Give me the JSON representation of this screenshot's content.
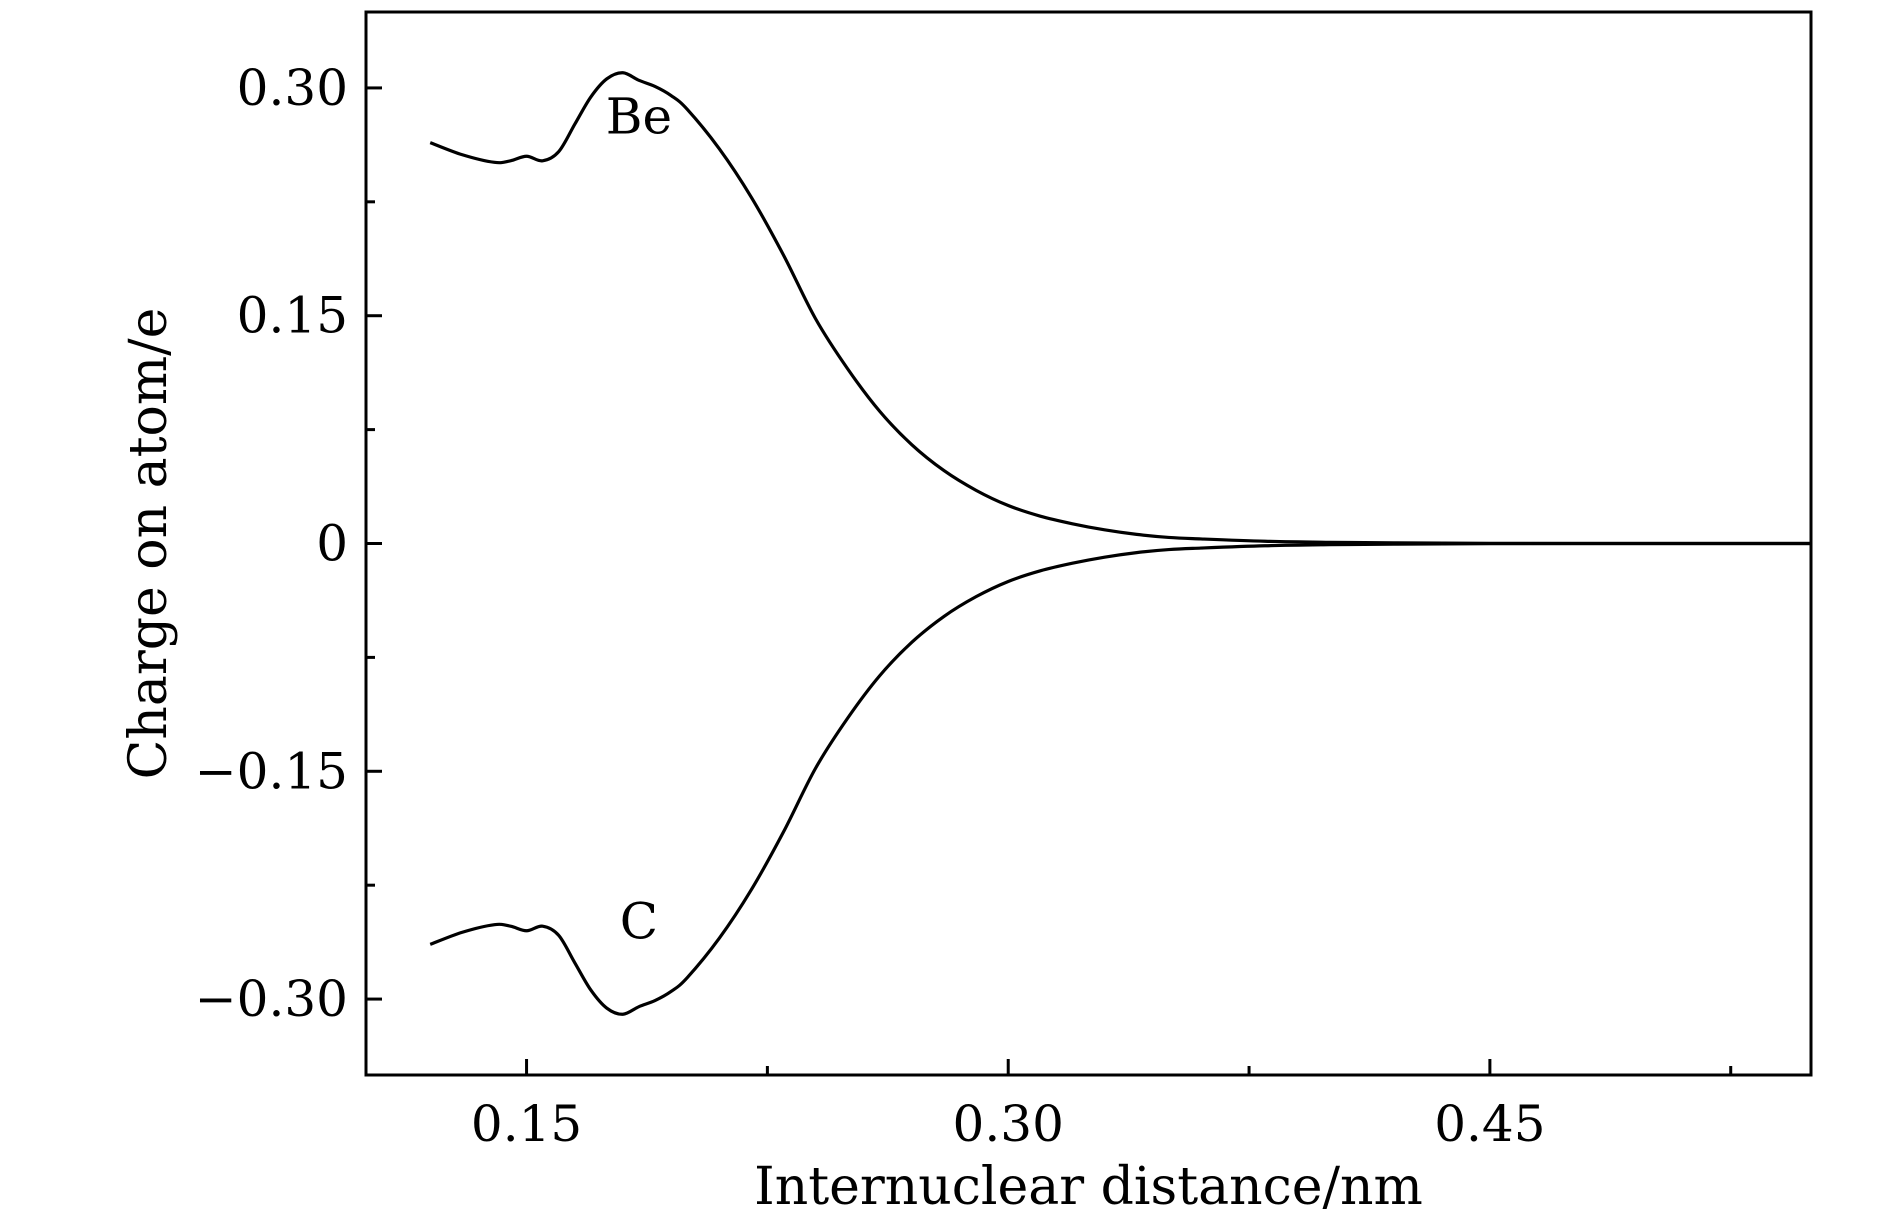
{
  "chart_data": {
    "type": "line",
    "title": "",
    "xlabel": "Internuclear distance/nm",
    "ylabel": "Charge on atom/e",
    "xlim": [
      0.1,
      0.55
    ],
    "ylim": [
      -0.35,
      0.35
    ],
    "xticks": [
      0.15,
      0.3,
      0.45
    ],
    "xtick_labels": [
      "0.15",
      "0.30",
      "0.45"
    ],
    "x_minor_ticks": [
      0.225,
      0.375,
      0.525
    ],
    "yticks": [
      0.3,
      0.15,
      0,
      -0.15,
      -0.3
    ],
    "ytick_labels": [
      "0.30",
      "0.15",
      "0",
      "−0.15",
      "−0.30"
    ],
    "y_minor_ticks": [
      0.225,
      0.075,
      -0.075,
      -0.225
    ],
    "grid": false,
    "legend": "none",
    "series": [
      {
        "name": "Be",
        "x": [
          0.12,
          0.13,
          0.14,
          0.145,
          0.15,
          0.155,
          0.16,
          0.165,
          0.17,
          0.175,
          0.18,
          0.185,
          0.19,
          0.195,
          0.2,
          0.21,
          0.22,
          0.23,
          0.24,
          0.25,
          0.26,
          0.27,
          0.28,
          0.29,
          0.3,
          0.31,
          0.32,
          0.33,
          0.34,
          0.35,
          0.36,
          0.38,
          0.4,
          0.42,
          0.45,
          0.5,
          0.55
        ],
        "y": [
          0.264,
          0.256,
          0.251,
          0.252,
          0.255,
          0.252,
          0.258,
          0.276,
          0.294,
          0.306,
          0.31,
          0.305,
          0.301,
          0.295,
          0.286,
          0.26,
          0.228,
          0.19,
          0.148,
          0.115,
          0.087,
          0.065,
          0.048,
          0.035,
          0.025,
          0.018,
          0.013,
          0.009,
          0.006,
          0.004,
          0.003,
          0.0015,
          0.0008,
          0.0004,
          0.0001,
          0.0,
          0.0
        ]
      },
      {
        "name": "C",
        "x": [
          0.12,
          0.13,
          0.14,
          0.145,
          0.15,
          0.155,
          0.16,
          0.165,
          0.17,
          0.175,
          0.18,
          0.185,
          0.19,
          0.195,
          0.2,
          0.21,
          0.22,
          0.23,
          0.24,
          0.25,
          0.26,
          0.27,
          0.28,
          0.29,
          0.3,
          0.31,
          0.32,
          0.33,
          0.34,
          0.35,
          0.36,
          0.38,
          0.4,
          0.42,
          0.45,
          0.5,
          0.55
        ],
        "y": [
          -0.264,
          -0.256,
          -0.251,
          -0.252,
          -0.255,
          -0.252,
          -0.258,
          -0.276,
          -0.294,
          -0.306,
          -0.31,
          -0.305,
          -0.301,
          -0.295,
          -0.286,
          -0.26,
          -0.228,
          -0.19,
          -0.148,
          -0.115,
          -0.087,
          -0.065,
          -0.048,
          -0.035,
          -0.025,
          -0.018,
          -0.013,
          -0.009,
          -0.006,
          -0.004,
          -0.003,
          -0.0015,
          -0.0008,
          -0.0004,
          -0.0001,
          0.0,
          0.0
        ]
      }
    ],
    "annotations": [
      {
        "text": "Be",
        "x": 0.185,
        "y": 0.27
      },
      {
        "text": "C",
        "x": 0.185,
        "y": -0.26
      }
    ]
  }
}
